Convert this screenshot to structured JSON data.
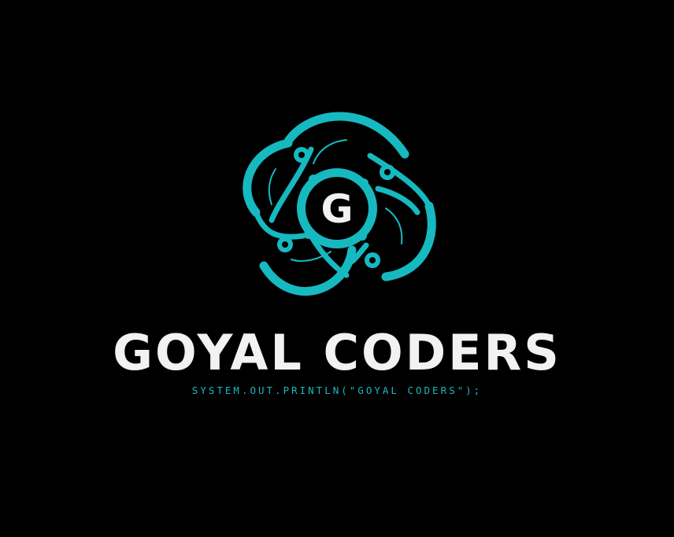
{
  "logo": {
    "icon": "g-flower-emblem-icon",
    "monogram": "G",
    "brand_name": "GOYAL CODERS",
    "tagline": "SYSTEM.OUT.PRINTLN(\"GOYAL CODERS\");"
  },
  "colors": {
    "background": "#000000",
    "accent": "#17b9c0",
    "text": "#f2f2f2"
  }
}
